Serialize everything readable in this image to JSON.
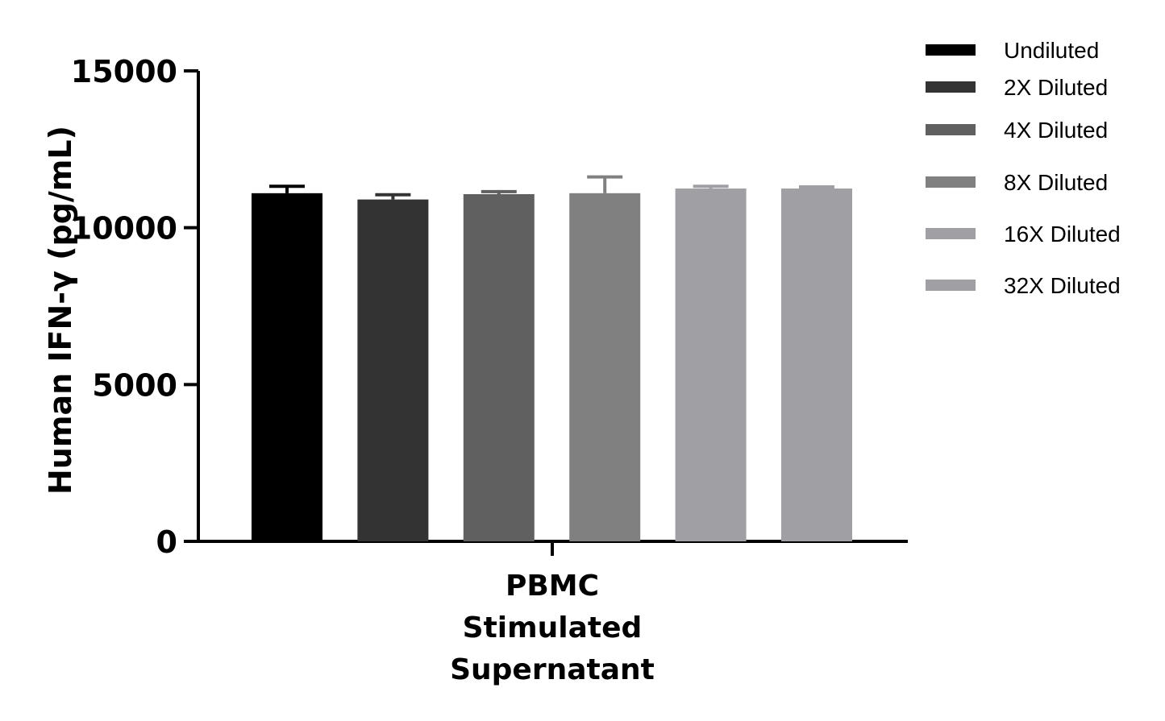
{
  "chart_data": {
    "type": "bar",
    "title": "",
    "ylabel": "Human IFN-γ (pg/mL)",
    "xlabel": "",
    "ylim": [
      0,
      15000
    ],
    "yticks": [
      "0",
      "5000",
      "10000",
      "15000"
    ],
    "category_lines": [
      "PBMC",
      "Stimulated",
      "Supernatant"
    ],
    "legend_position": "top-right",
    "grid": false,
    "series": [
      {
        "name": "Undiluted",
        "value": 11100,
        "error": 220,
        "color": "#000000"
      },
      {
        "name": "2X Diluted",
        "value": 10900,
        "error": 150,
        "color": "#333333"
      },
      {
        "name": "4X Diluted",
        "value": 11070,
        "error": 80,
        "color": "#606060"
      },
      {
        "name": "8X Diluted",
        "value": 11100,
        "error": 520,
        "color": "#808080"
      },
      {
        "name": "16X Diluted",
        "value": 11250,
        "error": 70,
        "color": "#a0a0a4"
      },
      {
        "name": "32X Diluted",
        "value": 11250,
        "error": 50,
        "color": "#a0a0a4"
      }
    ]
  }
}
